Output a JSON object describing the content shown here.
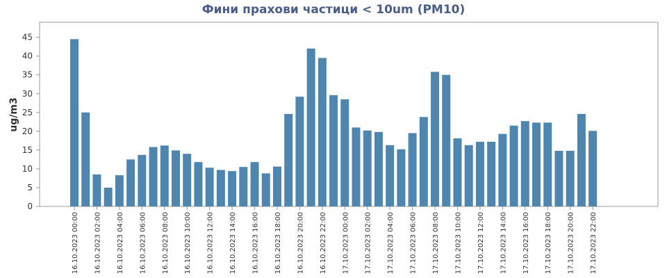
{
  "chart_data": {
    "type": "bar",
    "title": "Фини прахови частици < 10um (PM10)",
    "y_label": "ug/m3",
    "categories": [
      "16.10.2023 00:00",
      null,
      "16.10.2023 02:00",
      null,
      "16.10.2023 04:00",
      null,
      "16.10.2023 06:00",
      null,
      "16.10.2023 08:00",
      null,
      "16.10.2023 10:00",
      null,
      "16.10.2023 12:00",
      null,
      "16.10.2023 14:00",
      null,
      "16.10.2023 16:00",
      null,
      "16.10.2023 18:00",
      null,
      "16.10.2023 20:00",
      null,
      "16.10.2023 22:00",
      null,
      "17.10.2023 00:00",
      null,
      "17.10.2023 02:00",
      null,
      "17.10.2023 04:00",
      null,
      "17.10.2023 06:00",
      null,
      "17.10.2023 08:00",
      null,
      "17.10.2023 10:00",
      null,
      "17.10.2023 12:00",
      null,
      "17.10.2023 14:00",
      null,
      "17.10.2023 16:00",
      null,
      "17.10.2023 18:00",
      null,
      "17.10.2023 20:00",
      null,
      "17.10.2023 22:00"
    ],
    "values": [
      44.5,
      25,
      8.5,
      5,
      8.3,
      12.5,
      13.7,
      15.8,
      16.2,
      14.9,
      14,
      11.8,
      10.3,
      9.7,
      9.4,
      10.5,
      11.8,
      8.8,
      10.6,
      24.6,
      29.2,
      42,
      39.5,
      29.6,
      28.5,
      21,
      20.2,
      19.8,
      16.3,
      15.2,
      19.5,
      23.8,
      35.8,
      35,
      18.1,
      16.3,
      17.2,
      17.2,
      19.3,
      21.5,
      22.7,
      22.3,
      22.3,
      14.8,
      14.8,
      24.6,
      20.1
    ],
    "color": "#4e86b0",
    "ylim": [
      0,
      49
    ],
    "yticks": [
      0,
      5,
      10,
      15,
      20,
      25,
      30,
      35,
      40,
      45
    ],
    "grid": false
  }
}
